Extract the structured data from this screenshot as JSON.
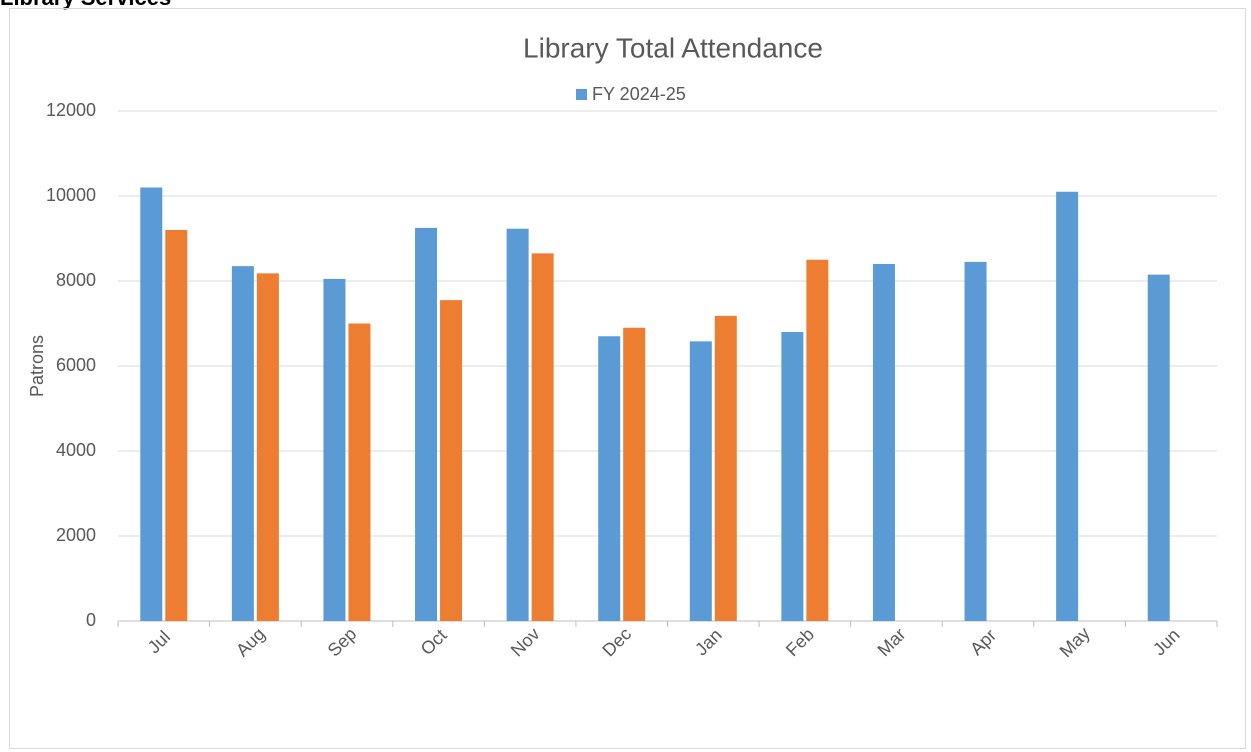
{
  "header": "Library Services",
  "chart_data": {
    "type": "bar",
    "title": "Library Total Attendance",
    "y_label": "Patrons",
    "categories": [
      "Jul",
      "Aug",
      "Sep",
      "Oct",
      "Nov",
      "Dec",
      "Jan",
      "Feb",
      "Mar",
      "Apr",
      "May",
      "Jun"
    ],
    "series": [
      {
        "name": "FY 2024-25",
        "color": "#5b9bd5",
        "values": [
          10200,
          8350,
          8050,
          9250,
          9230,
          6700,
          6580,
          6800,
          8400,
          8450,
          10100,
          8150
        ]
      },
      {
        "color": "#ed7d31",
        "values": [
          9200,
          8180,
          7000,
          7550,
          8650,
          6900,
          7180,
          8500,
          null,
          null,
          null,
          null
        ]
      }
    ],
    "ylim": [
      0,
      12000
    ],
    "yticks": [
      0,
      2000,
      4000,
      6000,
      8000,
      10000,
      12000
    ],
    "grid": true,
    "legend": "top"
  }
}
